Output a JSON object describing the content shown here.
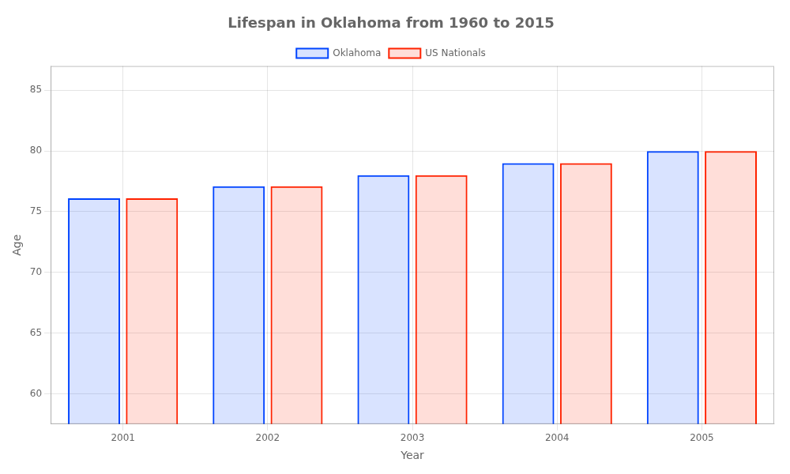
{
  "chart_data": {
    "type": "bar",
    "title": "Lifespan in Oklahoma from 1960 to 2015",
    "x_label": "Year",
    "y_label": "Age",
    "categories": [
      "2001",
      "2002",
      "2003",
      "2004",
      "2005"
    ],
    "series": [
      {
        "name": "Oklahoma",
        "color": "#0044ff",
        "values": [
          76.1,
          77.1,
          78.0,
          79.0,
          80.0
        ]
      },
      {
        "name": "US Nationals",
        "color": "#ff2200",
        "values": [
          76.1,
          77.1,
          78.0,
          79.0,
          80.0
        ]
      }
    ],
    "ylim": [
      57.5,
      87
    ],
    "yticks": [
      60,
      65,
      70,
      75,
      80,
      85
    ],
    "grid": true,
    "legend": "top"
  }
}
